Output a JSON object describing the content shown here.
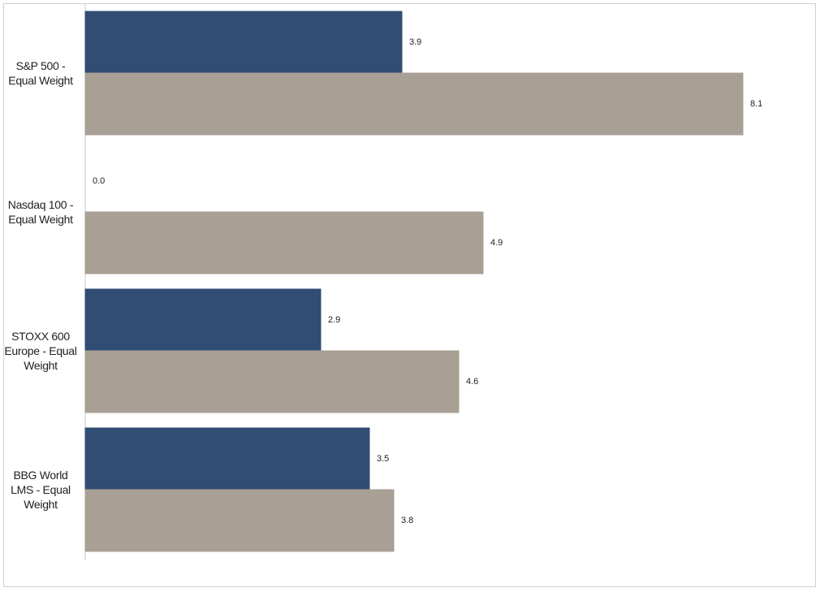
{
  "chart_data": {
    "type": "bar",
    "orientation": "horizontal",
    "categories": [
      "S&P 500 - Equal Weight",
      "Nasdaq 100 - Equal Weight",
      "STOXX 600 Europe - Equal Weight",
      "BBG World LMS - Equal Weight"
    ],
    "series": [
      {
        "color": "#324d73",
        "values": [
          3.9,
          0,
          2.9,
          3.5
        ],
        "value_labels": [
          "3.9",
          "0.0",
          "2.9",
          "3.5"
        ]
      },
      {
        "color": "#a89f95",
        "values": [
          8.1,
          4.9,
          4.6,
          3.8
        ]
      }
    ],
    "xlim": [
      0,
      9
    ]
  }
}
